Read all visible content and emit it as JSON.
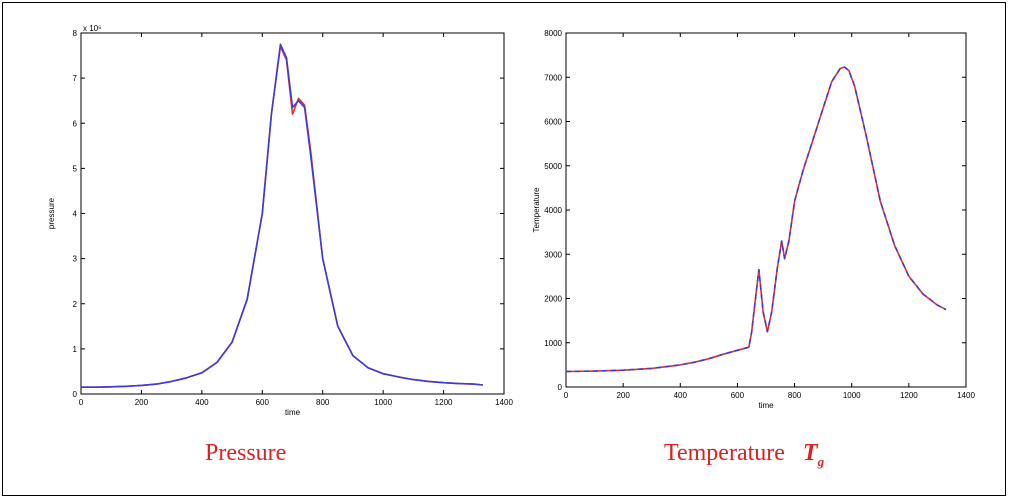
{
  "chart_data": [
    {
      "type": "line",
      "caption": "Pressure",
      "xlabel": "time",
      "ylabel": "pressure",
      "exponent_label": "x 10⁶",
      "xlim": [
        0,
        1400
      ],
      "ylim": [
        0,
        8
      ],
      "xticks": [
        "0",
        "200",
        "400",
        "600",
        "800",
        "1000",
        "1200",
        "1400"
      ],
      "yticks": [
        "0",
        "1",
        "2",
        "3",
        "4",
        "5",
        "6",
        "7",
        "8"
      ],
      "series": [
        {
          "color": "#e03030",
          "x": [
            0,
            50,
            100,
            150,
            200,
            250,
            300,
            350,
            400,
            450,
            500,
            550,
            600,
            630,
            660,
            680,
            700,
            720,
            740,
            760,
            800,
            850,
            900,
            950,
            1000,
            1050,
            1100,
            1150,
            1200,
            1250,
            1300,
            1330
          ],
          "y": [
            0.15,
            0.15,
            0.16,
            0.17,
            0.19,
            0.22,
            0.28,
            0.36,
            0.47,
            0.7,
            1.15,
            2.1,
            4.0,
            6.2,
            7.7,
            7.4,
            6.2,
            6.55,
            6.4,
            5.4,
            3.0,
            1.5,
            0.85,
            0.58,
            0.45,
            0.38,
            0.32,
            0.28,
            0.25,
            0.23,
            0.22,
            0.2
          ]
        },
        {
          "color": "#3b3bdc",
          "x": [
            0,
            50,
            100,
            150,
            200,
            250,
            300,
            350,
            400,
            450,
            500,
            550,
            600,
            630,
            660,
            680,
            700,
            720,
            740,
            760,
            800,
            850,
            900,
            950,
            1000,
            1050,
            1100,
            1150,
            1200,
            1250,
            1300,
            1330
          ],
          "y": [
            0.15,
            0.15,
            0.16,
            0.17,
            0.19,
            0.22,
            0.28,
            0.36,
            0.47,
            0.7,
            1.15,
            2.1,
            4.0,
            6.2,
            7.75,
            7.45,
            6.35,
            6.5,
            6.35,
            5.3,
            3.0,
            1.5,
            0.85,
            0.58,
            0.45,
            0.38,
            0.32,
            0.28,
            0.25,
            0.23,
            0.22,
            0.2
          ]
        }
      ]
    },
    {
      "type": "line",
      "caption": "Temperature",
      "caption_symbol": "T",
      "caption_sub": "g",
      "xlabel": "time",
      "ylabel": "Temperature",
      "xlim": [
        0,
        1400
      ],
      "ylim": [
        0,
        8000
      ],
      "xticks": [
        "0",
        "200",
        "400",
        "600",
        "800",
        "1000",
        "1200",
        "1400"
      ],
      "yticks": [
        "0",
        "1000",
        "2000",
        "3000",
        "4000",
        "5000",
        "6000",
        "7000",
        "8000"
      ],
      "series": [
        {
          "color": "#e03030",
          "x": [
            0,
            100,
            200,
            300,
            400,
            450,
            500,
            550,
            600,
            640,
            650,
            665,
            675,
            690,
            705,
            720,
            740,
            755,
            765,
            780,
            800,
            830,
            870,
            900,
            930,
            960,
            975,
            990,
            1010,
            1050,
            1100,
            1150,
            1200,
            1250,
            1300,
            1330
          ],
          "y": [
            350,
            360,
            380,
            420,
            500,
            560,
            640,
            740,
            830,
            900,
            1250,
            2100,
            2650,
            1700,
            1250,
            1700,
            2700,
            3300,
            2900,
            3300,
            4200,
            4900,
            5700,
            6300,
            6900,
            7200,
            7230,
            7150,
            6800,
            5700,
            4200,
            3200,
            2500,
            2100,
            1850,
            1750
          ]
        },
        {
          "color": "#3b3bdc",
          "x": [
            0,
            100,
            200,
            300,
            400,
            450,
            500,
            550,
            600,
            640,
            650,
            665,
            675,
            690,
            705,
            720,
            740,
            755,
            765,
            780,
            800,
            830,
            870,
            900,
            930,
            960,
            975,
            990,
            1010,
            1050,
            1100,
            1150,
            1200,
            1250,
            1300,
            1330
          ],
          "y": [
            350,
            360,
            380,
            420,
            500,
            560,
            640,
            740,
            830,
            900,
            1250,
            2100,
            2650,
            1700,
            1250,
            1700,
            2700,
            3300,
            2900,
            3300,
            4200,
            4900,
            5700,
            6300,
            6900,
            7200,
            7230,
            7150,
            6800,
            5700,
            4200,
            3200,
            2500,
            2100,
            1850,
            1750
          ]
        }
      ]
    }
  ]
}
